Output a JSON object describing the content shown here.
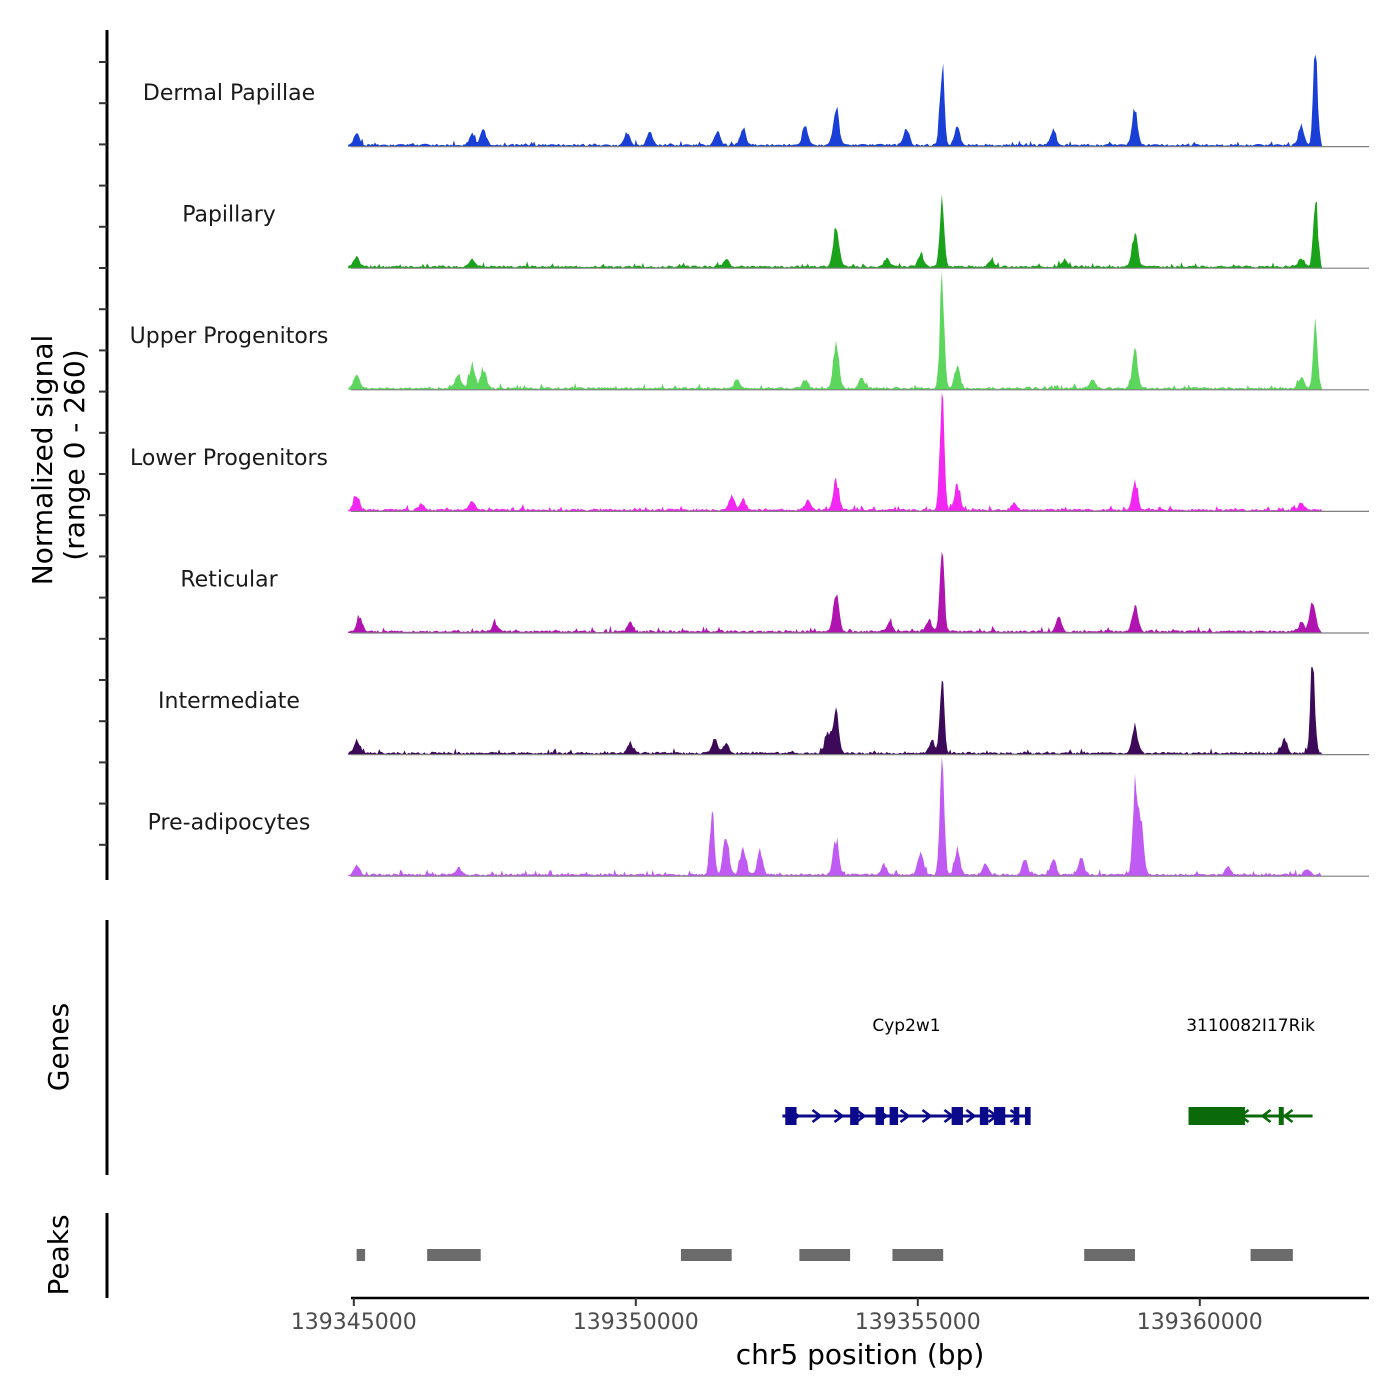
{
  "chart_data": {
    "type": "area",
    "chromosome": "chr5",
    "xlabel": "chr5 position (bp)",
    "ylabel_line1": "Normalized signal",
    "ylabel_line2": "(range 0 - 260)",
    "ylim": [
      0,
      260
    ],
    "xlim": [
      139344950,
      139363000
    ],
    "x_ticks": [
      139345000,
      139350000,
      139355000,
      139360000
    ],
    "x_tick_labels": [
      "139345000",
      "139350000",
      "139355000",
      "139360000"
    ],
    "coverage_tracks": [
      {
        "name": "Dermal Papillae",
        "color": "#1a3fd6",
        "peaks": [
          [
            139345050,
            35
          ],
          [
            139347100,
            30
          ],
          [
            139347300,
            45
          ],
          [
            139349850,
            35
          ],
          [
            139350250,
            40
          ],
          [
            139351450,
            40
          ],
          [
            139351900,
            50
          ],
          [
            139353000,
            55
          ],
          [
            139353550,
            110
          ],
          [
            139354800,
            50
          ],
          [
            139355430,
            230
          ],
          [
            139355700,
            50
          ],
          [
            139357400,
            40
          ],
          [
            139358850,
            100
          ],
          [
            139361800,
            55
          ],
          [
            139362050,
            270
          ]
        ]
      },
      {
        "name": "Papillary",
        "color": "#1aa31a",
        "peaks": [
          [
            139345050,
            30
          ],
          [
            139347100,
            20
          ],
          [
            139351600,
            20
          ],
          [
            139353550,
            120
          ],
          [
            139354450,
            25
          ],
          [
            139355050,
            30
          ],
          [
            139355430,
            190
          ],
          [
            139356300,
            20
          ],
          [
            139357600,
            20
          ],
          [
            139358850,
            95
          ],
          [
            139361800,
            25
          ],
          [
            139362050,
            210
          ]
        ]
      },
      {
        "name": "Upper Progenitors",
        "color": "#5cd65c",
        "peaks": [
          [
            139345050,
            40
          ],
          [
            139346850,
            40
          ],
          [
            139347100,
            70
          ],
          [
            139347300,
            55
          ],
          [
            139351800,
            25
          ],
          [
            139353000,
            25
          ],
          [
            139353550,
            120
          ],
          [
            139354000,
            30
          ],
          [
            139355430,
            310
          ],
          [
            139355700,
            60
          ],
          [
            139358100,
            25
          ],
          [
            139358850,
            100
          ],
          [
            139361800,
            30
          ],
          [
            139362050,
            170
          ]
        ]
      },
      {
        "name": "Lower Progenitors",
        "color": "#f227f2",
        "peaks": [
          [
            139345050,
            45
          ],
          [
            139346200,
            20
          ],
          [
            139347100,
            25
          ],
          [
            139351700,
            40
          ],
          [
            139351900,
            30
          ],
          [
            139353550,
            85
          ],
          [
            139353050,
            30
          ],
          [
            139355430,
            320
          ],
          [
            139355700,
            70
          ],
          [
            139356700,
            20
          ],
          [
            139358850,
            75
          ],
          [
            139361800,
            20
          ]
        ]
      },
      {
        "name": "Reticular",
        "color": "#b014b0",
        "peaks": [
          [
            139345100,
            40
          ],
          [
            139347500,
            25
          ],
          [
            139349900,
            25
          ],
          [
            139353550,
            115
          ],
          [
            139354500,
            25
          ],
          [
            139355200,
            35
          ],
          [
            139355430,
            240
          ],
          [
            139357500,
            40
          ],
          [
            139358850,
            75
          ],
          [
            139361800,
            25
          ],
          [
            139362000,
            95
          ]
        ]
      },
      {
        "name": "Intermediate",
        "color": "#3d0a59",
        "peaks": [
          [
            139345050,
            35
          ],
          [
            139349900,
            25
          ],
          [
            139351400,
            40
          ],
          [
            139351600,
            30
          ],
          [
            139353550,
            120
          ],
          [
            139353400,
            60
          ],
          [
            139355250,
            30
          ],
          [
            139355430,
            205
          ],
          [
            139358850,
            70
          ],
          [
            139361500,
            40
          ],
          [
            139362000,
            265
          ]
        ]
      },
      {
        "name": "Pre-adipocytes",
        "color": "#bf5af2",
        "peaks": [
          [
            139345050,
            25
          ],
          [
            139346850,
            20
          ],
          [
            139351350,
            180
          ],
          [
            139351600,
            110
          ],
          [
            139351900,
            80
          ],
          [
            139352200,
            65
          ],
          [
            139353550,
            100
          ],
          [
            139354400,
            30
          ],
          [
            139355050,
            60
          ],
          [
            139355430,
            330
          ],
          [
            139355700,
            70
          ],
          [
            139356200,
            30
          ],
          [
            139356900,
            45
          ],
          [
            139357400,
            40
          ],
          [
            139357900,
            45
          ],
          [
            139358850,
            240
          ],
          [
            139358950,
            150
          ],
          [
            139360500,
            25
          ],
          [
            139361900,
            15
          ]
        ]
      }
    ],
    "genes_track": {
      "label": "Genes",
      "genes": [
        {
          "name": "Cyp2w1",
          "strand": "+",
          "start": 139352600,
          "end": 139357000,
          "color": "#0a0a8a",
          "exons": [
            [
              139352650,
              139352850
            ],
            [
              139353800,
              139353950
            ],
            [
              139354250,
              139354400
            ],
            [
              139354500,
              139354650
            ],
            [
              139355600,
              139355800
            ],
            [
              139356100,
              139356250
            ],
            [
              139356350,
              139356550
            ],
            [
              139356700,
              139356800
            ],
            [
              139356900,
              139357000
            ]
          ]
        },
        {
          "name": "3110082I17Rik",
          "strand": "-",
          "start": 139359800,
          "end": 139362000,
          "color": "#0a6a0a",
          "exons": [
            [
              139359800,
              139360800
            ],
            [
              139361400,
              139361480
            ]
          ]
        }
      ]
    },
    "peaks_track": {
      "label": "Peaks",
      "color": "#6b6b6b",
      "regions": [
        [
          139345050,
          139345200
        ],
        [
          139346300,
          139347250
        ],
        [
          139350800,
          139351700
        ],
        [
          139352900,
          139353800
        ],
        [
          139354550,
          139355450
        ],
        [
          139357950,
          139358850
        ],
        [
          139360900,
          139361650
        ]
      ]
    }
  }
}
